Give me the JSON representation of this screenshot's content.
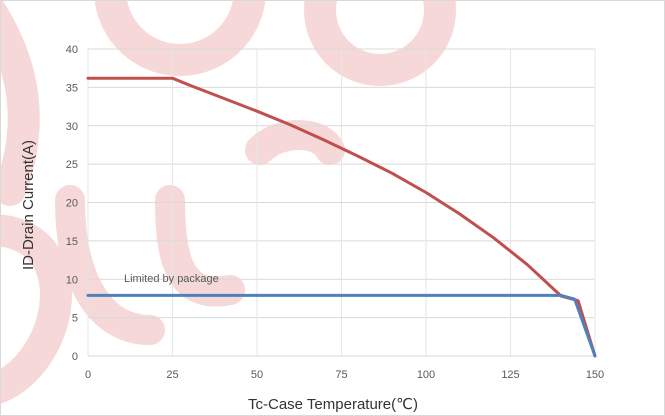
{
  "chart_data": {
    "type": "line",
    "title": "",
    "xlabel": "Tc-Case Temperature(℃)",
    "ylabel": "ID-Drain Current(A)",
    "xlim": [
      0,
      150
    ],
    "ylim": [
      0,
      40
    ],
    "x_ticks": [
      "0",
      "25",
      "50",
      "75",
      "100",
      "125",
      "150"
    ],
    "y_ticks": [
      "0",
      "5",
      "10",
      "15",
      "20",
      "25",
      "30",
      "35",
      "40"
    ],
    "grid": true,
    "annotations": [
      {
        "text": "Limited by package"
      }
    ],
    "series": [
      {
        "color": "#c0504d",
        "x": [
          0,
          25,
          30,
          40,
          50,
          60,
          70,
          80,
          90,
          100,
          110,
          120,
          130,
          140,
          145,
          150
        ],
        "y": [
          36.2,
          36.2,
          35.3,
          33.6,
          31.9,
          30.1,
          28.1,
          26.0,
          23.8,
          21.3,
          18.5,
          15.4,
          11.9,
          7.8,
          7.2,
          0
        ]
      },
      {
        "color": "#4f81bd",
        "x": [
          0,
          25,
          50,
          75,
          100,
          125,
          137,
          140,
          144,
          150
        ],
        "y": [
          7.9,
          7.9,
          7.9,
          7.9,
          7.9,
          7.9,
          7.9,
          7.9,
          7.4,
          0
        ]
      }
    ]
  }
}
